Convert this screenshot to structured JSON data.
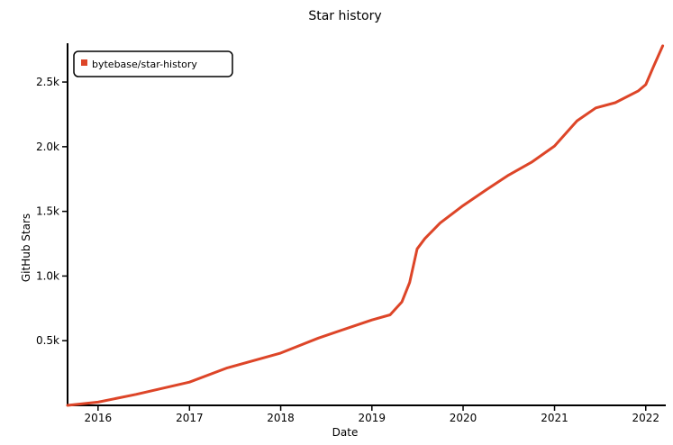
{
  "chart_data": {
    "type": "line",
    "title": "Star history",
    "xlabel": "Date",
    "ylabel": "GitHub Stars",
    "x_ticks": [
      "2016",
      "2017",
      "2018",
      "2019",
      "2020",
      "2021",
      "2022"
    ],
    "y_ticks": [
      "0.5k",
      "1.0k",
      "1.5k",
      "2.0k",
      "2.5k"
    ],
    "y_tick_values": [
      500,
      1000,
      1500,
      2000,
      2500
    ],
    "xlim": [
      "2015-09-01",
      "2022-03-15"
    ],
    "ylim": [
      0,
      2800
    ],
    "grid": false,
    "legend_position": "top-left",
    "series": [
      {
        "name": "bytebase/star-history",
        "color": "#dd4528",
        "x": [
          "2015-09-01",
          "2016-01-01",
          "2016-06-01",
          "2017-01-01",
          "2017-06-01",
          "2018-01-01",
          "2018-06-01",
          "2018-09-15",
          "2019-01-01",
          "2019-03-15",
          "2019-05-01",
          "2019-06-01",
          "2019-07-01",
          "2019-08-01",
          "2019-10-01",
          "2020-01-01",
          "2020-04-01",
          "2020-07-01",
          "2020-10-01",
          "2021-01-01",
          "2021-04-01",
          "2021-06-15",
          "2021-09-01",
          "2021-12-01",
          "2022-01-01",
          "2022-02-01",
          "2022-03-10"
        ],
        "y": [
          0,
          25,
          85,
          180,
          290,
          405,
          520,
          590,
          660,
          700,
          800,
          950,
          1210,
          1290,
          1410,
          1545,
          1665,
          1780,
          1880,
          2005,
          2200,
          2300,
          2340,
          2430,
          2480,
          2620,
          2780
        ]
      }
    ]
  }
}
